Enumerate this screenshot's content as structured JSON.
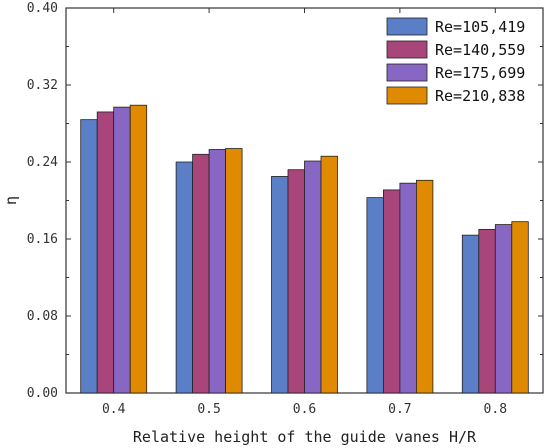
{
  "chart_data": {
    "type": "bar",
    "categories": [
      "0.4",
      "0.5",
      "0.6",
      "0.7",
      "0.8"
    ],
    "series": [
      {
        "name": "Re=105,419",
        "values": [
          0.284,
          0.24,
          0.225,
          0.203,
          0.164
        ],
        "color": "#5b7fc7"
      },
      {
        "name": "Re=140,559",
        "values": [
          0.292,
          0.248,
          0.232,
          0.211,
          0.17
        ],
        "color": "#a8457a"
      },
      {
        "name": "Re=175,699",
        "values": [
          0.297,
          0.253,
          0.241,
          0.218,
          0.175
        ],
        "color": "#8866c4"
      },
      {
        "name": "Re=210,838",
        "values": [
          0.299,
          0.254,
          0.246,
          0.221,
          0.178
        ],
        "color": "#e08a00"
      }
    ],
    "title": "",
    "xlabel": "Relative height of the guide vanes H/R",
    "ylabel": "η",
    "ylim": [
      0,
      0.4
    ],
    "yticks": [
      "0.00",
      "0.08",
      "0.16",
      "0.24",
      "0.32",
      "0.40"
    ],
    "grid": false,
    "legend_position": "top-right"
  }
}
